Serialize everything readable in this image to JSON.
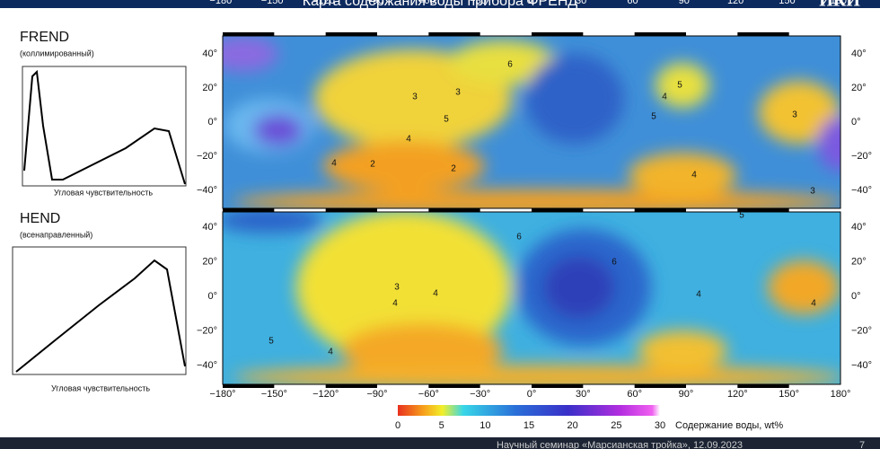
{
  "header": {
    "title": "Карта содержания воды прибора ФРЕНД",
    "logo": "ИКИ"
  },
  "panels": [
    {
      "name": "FREND",
      "subtitle": "(коллимированный)",
      "xlabel": "Угловая чувствительность"
    },
    {
      "name": "HEND",
      "subtitle": "(всенаправленный)",
      "xlabel": "Угловая чувствительность"
    }
  ],
  "maps": {
    "lon_labels": [
      "−180°",
      "−150°",
      "−120°",
      "−90°",
      "−60°",
      "−30°",
      "0°",
      "30°",
      "60°",
      "90°",
      "120°",
      "150°",
      "180°"
    ],
    "lat_labels": [
      "40°",
      "20°",
      "0°",
      "−20°",
      "−40°"
    ],
    "top_contour_labels": [
      "3",
      "3",
      "2",
      "2",
      "4",
      "5",
      "4",
      "5",
      "6",
      "5",
      "4",
      "3",
      "3",
      "4"
    ],
    "bottom_contour_labels": [
      "3",
      "4",
      "5",
      "4",
      "6",
      "6",
      "4",
      "4",
      "4",
      "5"
    ]
  },
  "colorbar": {
    "labels": [
      "0",
      "5",
      "10",
      "15",
      "20",
      "25",
      "30"
    ],
    "title": "Содержание воды, wt%"
  },
  "footer": {
    "text": "Научный семинар «Марсианская тройка», 12.09.2023",
    "page": "7"
  }
}
